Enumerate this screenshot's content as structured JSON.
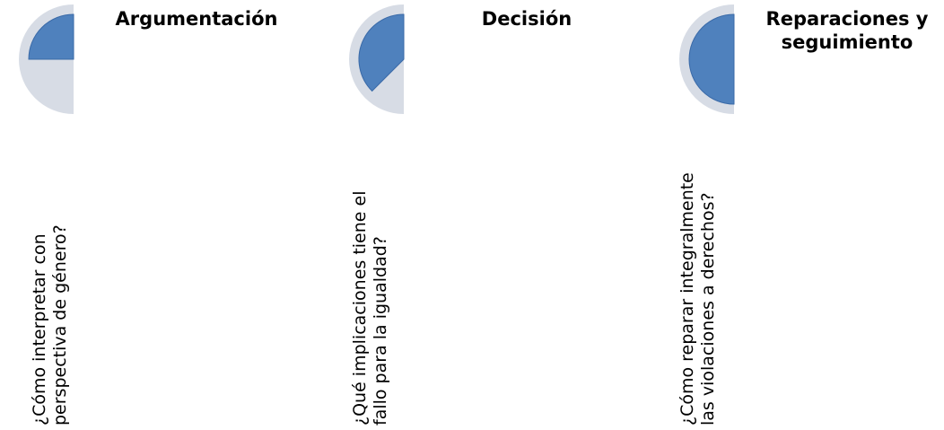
{
  "steps": [
    {
      "title": "Argumentación",
      "question": "¿Cómo interpretar con\nperspectiva de género?",
      "progress": 0.25
    },
    {
      "title": "Decisión",
      "question": "¿Qué implicaciones tiene el\nfallo para la igualdad?",
      "progress": 0.375
    },
    {
      "title": "Reparaciones y\nseguimiento",
      "question": "¿Cómo reparar integralmente\nlas violaciones a derechos?",
      "progress": 0.5
    }
  ],
  "colors": {
    "slice": "#4f81bd",
    "slice_stroke": "#3a6aa8",
    "track": "#d7dce5",
    "background": "#ffffff"
  }
}
